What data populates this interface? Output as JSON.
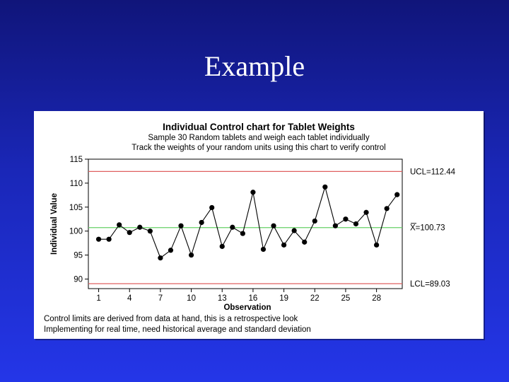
{
  "slide": {
    "title": "Example"
  },
  "chart_data": {
    "type": "line",
    "title": "Individual Control chart for Tablet Weights",
    "subtitle": [
      "Sample 30 Random tablets and weigh each tablet individually",
      "Track the weights of your random units using this chart to verify control"
    ],
    "xlabel": "Observation",
    "ylabel": "Individual Value",
    "xlim": [
      0,
      30.5
    ],
    "ylim": [
      88,
      115
    ],
    "x_ticks": [
      1,
      4,
      7,
      10,
      13,
      16,
      19,
      22,
      25,
      28
    ],
    "y_ticks": [
      90,
      95,
      100,
      105,
      110,
      115
    ],
    "grid": false,
    "x": [
      1,
      2,
      3,
      4,
      5,
      6,
      7,
      8,
      9,
      10,
      11,
      12,
      13,
      14,
      15,
      16,
      17,
      18,
      19,
      20,
      21,
      22,
      23,
      24,
      25,
      26,
      27,
      28,
      29,
      30
    ],
    "values": [
      98.3,
      98.3,
      101.3,
      99.7,
      100.8,
      100.0,
      94.4,
      96.0,
      101.1,
      95.0,
      101.8,
      104.9,
      96.8,
      100.8,
      99.5,
      108.1,
      96.2,
      101.1,
      97.1,
      100.1,
      97.7,
      102.1,
      109.2,
      101.1,
      102.5,
      101.5,
      103.9,
      97.1,
      104.7,
      107.6
    ],
    "control_limits": {
      "ucl": {
        "value": 112.44,
        "label": "UCL=112.44",
        "color": "#e06060"
      },
      "center": {
        "value": 100.73,
        "label": "X=100.73",
        "color": "#66d066"
      },
      "lcl": {
        "value": 89.03,
        "label": "LCL=89.03",
        "color": "#e06060"
      }
    },
    "footnotes": [
      "Control limits are derived from data at hand, this is a retrospective look",
      "Implementing for real time, need historical average and standard deviation"
    ],
    "line_color": "#000000",
    "marker_color": "#000000"
  }
}
